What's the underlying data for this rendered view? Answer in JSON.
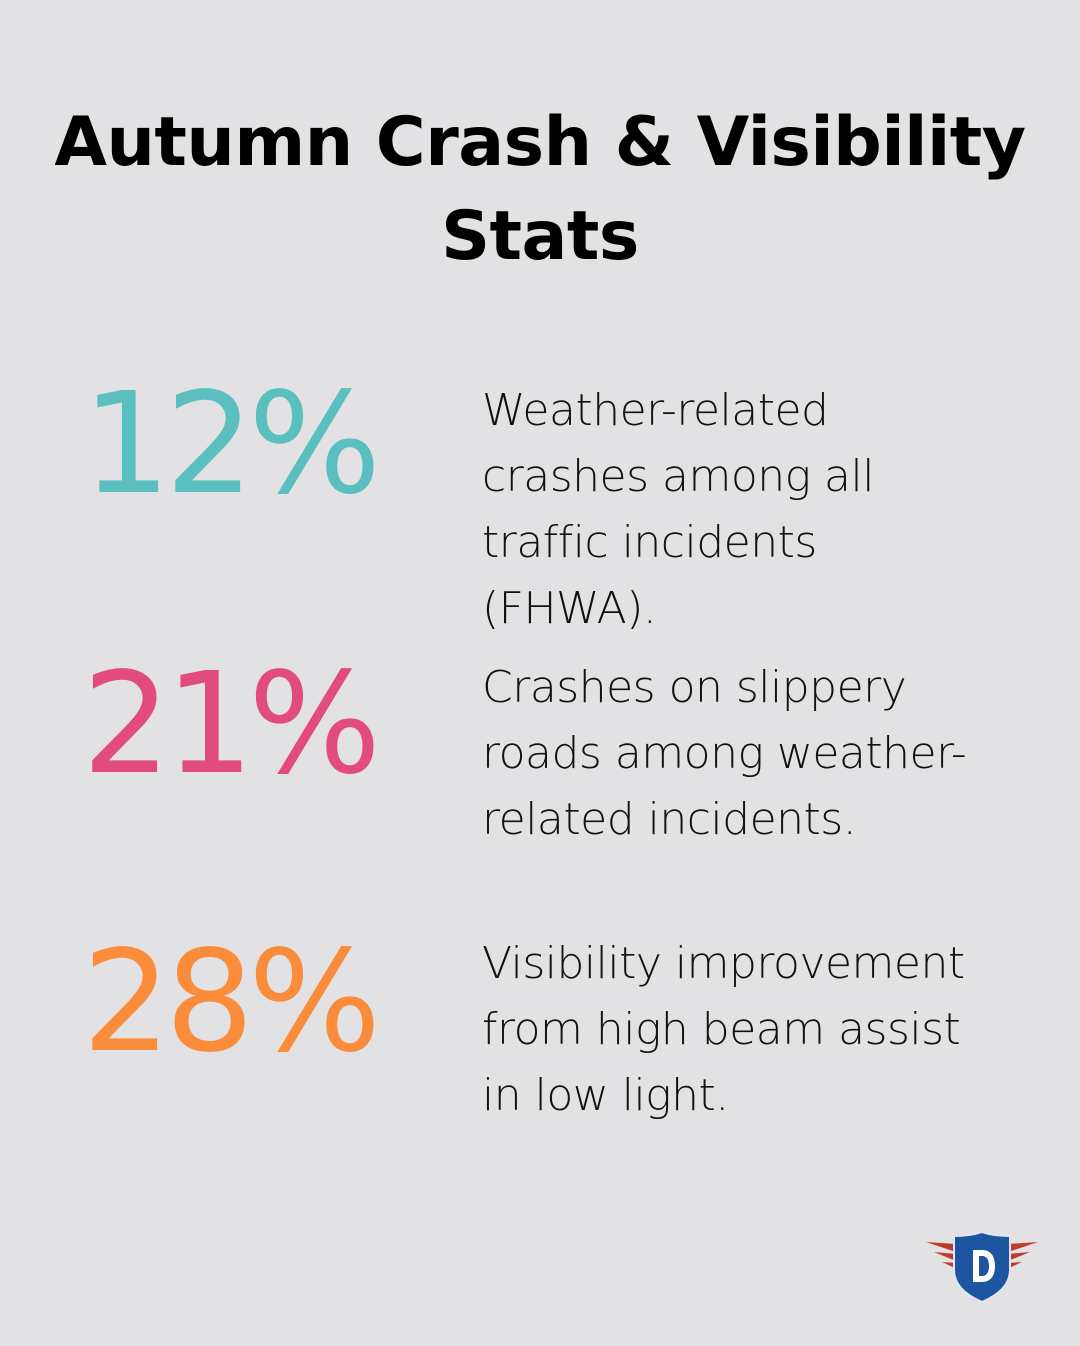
{
  "title": "Autumn Crash & Visibility Stats",
  "stats": [
    {
      "value": "12%",
      "color": "#5bbfc0",
      "description": "Weather-related crashes among all traffic incidents (FHWA)."
    },
    {
      "value": "21%",
      "color": "#e24c7c",
      "description": "Crashes on slippery roads among weather-related incidents."
    },
    {
      "value": "28%",
      "color": "#fb8c3b",
      "description": "Visibility improvement from high beam assist in low light."
    }
  ],
  "logo": {
    "letter": "D",
    "shield_color": "#1e55a0",
    "wing_color": "#c0392b"
  }
}
